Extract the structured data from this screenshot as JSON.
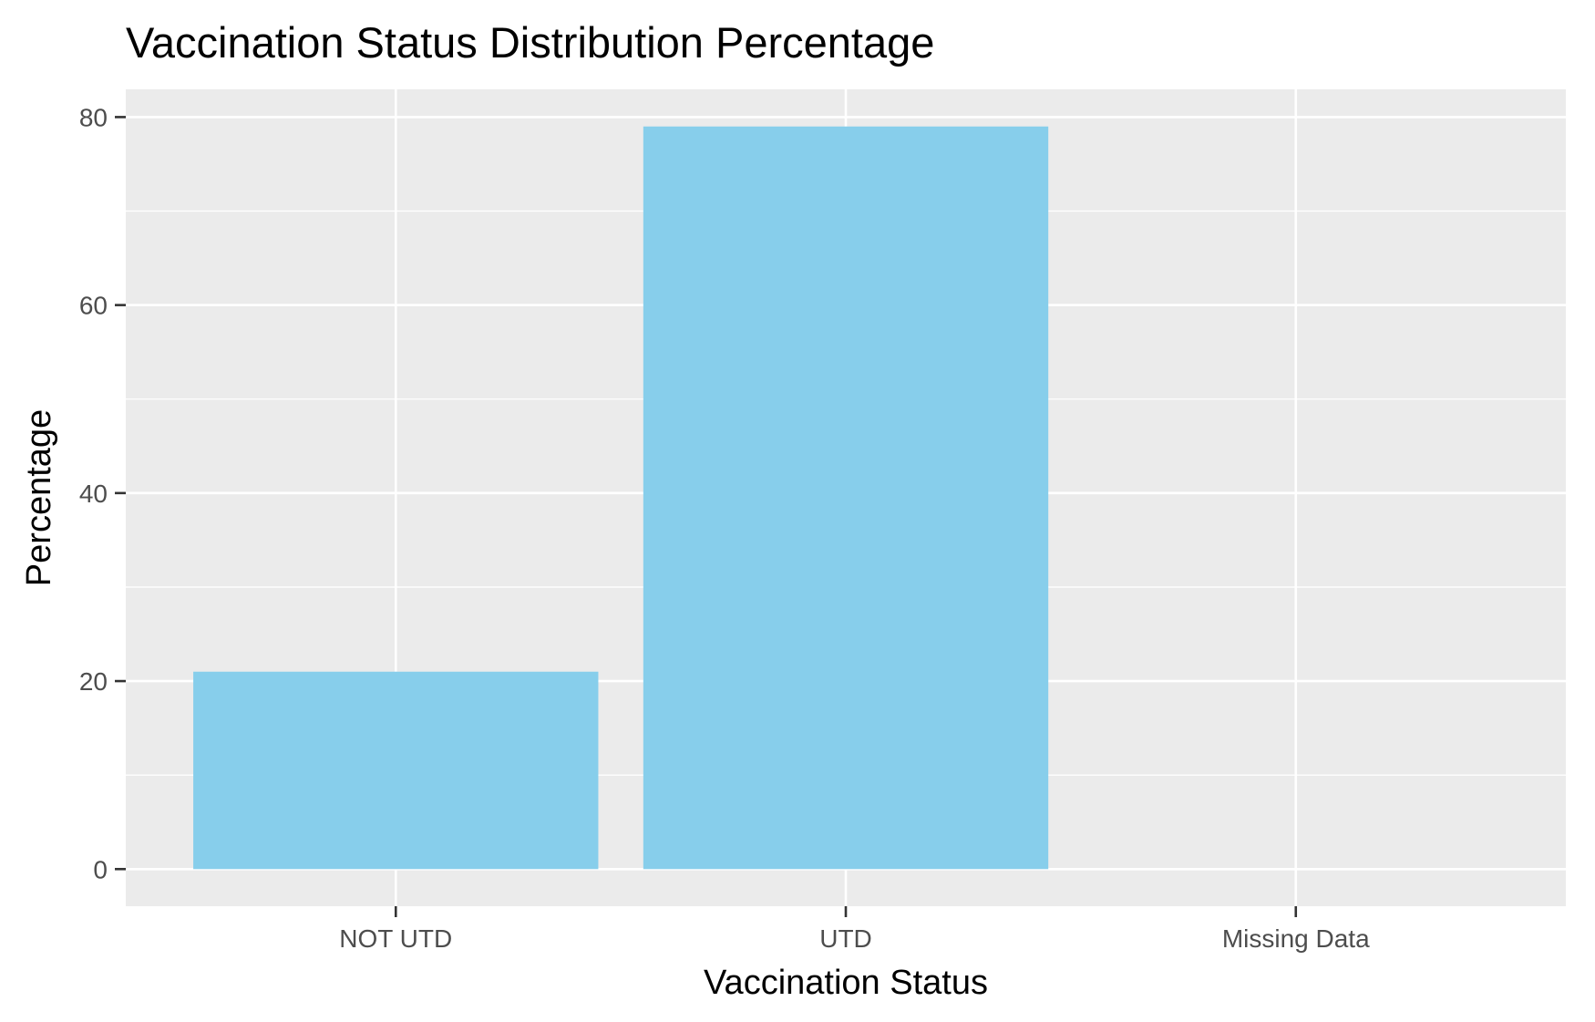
{
  "chart_data": {
    "type": "bar",
    "title": "Vaccination Status Distribution Percentage",
    "xlabel": "Vaccination Status",
    "ylabel": "Percentage",
    "categories": [
      "NOT UTD",
      "UTD",
      "Missing Data"
    ],
    "values": [
      21,
      79,
      0
    ],
    "ylim": [
      -3.95,
      82.95
    ],
    "yticks": [
      0,
      20,
      40,
      60,
      80
    ],
    "ytick_labels": [
      "0",
      "20",
      "40",
      "60",
      "80"
    ],
    "grid": true,
    "legend": "none",
    "colors": {
      "bar": "#87CEEB",
      "panel": "#EBEBEB",
      "grid": "#FFFFFF",
      "tick_text": "#4D4D4D",
      "tick_mark": "#333333"
    }
  }
}
